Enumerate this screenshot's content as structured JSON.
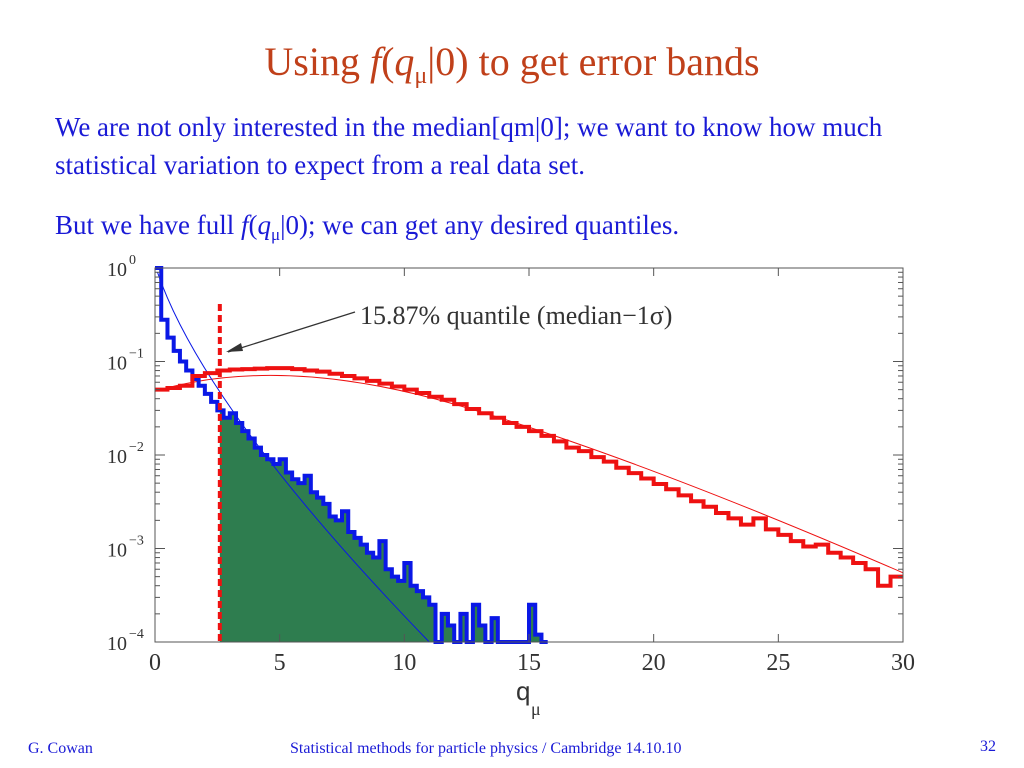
{
  "slide": {
    "title_prefix": "Using ",
    "title_f": "f",
    "title_paren": "(",
    "title_q": "q",
    "title_sub": "μ",
    "title_rest": "|0) to get error bands",
    "para1": "We are not only interested in the median[qm|0]; we want to know how much statistical variation to expect from a real data set.",
    "para2_prefix": "But we have full ",
    "para2_f": "f",
    "para2_paren": "(",
    "para2_q": "q",
    "para2_sub": "μ",
    "para2_rest": "|0); we can get any desired quantiles.",
    "footer_author": "G. Cowan",
    "footer_course": "Statistical methods for particle physics / Cambridge 14.10.10",
    "page_number": "32"
  },
  "chart_data": {
    "type": "line",
    "xlabel": "q",
    "xlabel_sub": "μ",
    "annotation": "15.87% quantile (median−1σ)",
    "xlim": [
      0,
      30
    ],
    "ylim": [
      0.0001,
      1
    ],
    "yscale": "log",
    "x_ticks": [
      0,
      5,
      10,
      15,
      20,
      25,
      30
    ],
    "y_ticks": [
      {
        "value": 1,
        "base": "10",
        "exp": "0"
      },
      {
        "value": 0.1,
        "base": "10",
        "exp": "−1"
      },
      {
        "value": 0.01,
        "base": "10",
        "exp": "−2"
      },
      {
        "value": 0.001,
        "base": "10",
        "exp": "−3"
      },
      {
        "value": 0.0001,
        "base": "10",
        "exp": "−4"
      }
    ],
    "quantile_x": 2.6,
    "colors": {
      "blue": "#0a18e6",
      "red": "#ee1111",
      "fill": "#2e7d4f",
      "arrow": "#333333"
    },
    "series": [
      {
        "color": "blue",
        "style": "histogram",
        "x": [
          0,
          0.25,
          0.5,
          0.75,
          1,
          1.25,
          1.5,
          1.75,
          2,
          2.25,
          2.5,
          2.75,
          3,
          3.25,
          3.5,
          3.75,
          4,
          4.25,
          4.5,
          4.75,
          5,
          5.25,
          5.5,
          5.75,
          6,
          6.25,
          6.5,
          6.75,
          7,
          7.25,
          7.5,
          7.75,
          8,
          8.25,
          8.5,
          8.75,
          9,
          9.25,
          9.5,
          9.75,
          10,
          10.25,
          10.5,
          10.75,
          11,
          11.25,
          11.5,
          11.75,
          12,
          12.25,
          12.5,
          12.75,
          13,
          13.25,
          13.5,
          13.75,
          14,
          14.25,
          14.5,
          14.75,
          15,
          15.25,
          15.5
        ],
        "y": [
          1,
          0.28,
          0.18,
          0.13,
          0.1,
          0.08,
          0.065,
          0.055,
          0.045,
          0.037,
          0.03,
          0.025,
          0.028,
          0.022,
          0.018,
          0.015,
          0.012,
          0.01,
          0.009,
          0.008,
          0.009,
          0.0065,
          0.0055,
          0.005,
          0.006,
          0.004,
          0.0035,
          0.003,
          0.0022,
          0.002,
          0.0025,
          0.0015,
          0.0013,
          0.0011,
          0.0009,
          0.0008,
          0.0012,
          0.0006,
          0.0005,
          0.00045,
          0.0007,
          0.0004,
          0.00035,
          0.0003,
          0.00025,
          0.0001,
          0.0002,
          0.00015,
          0.0001,
          0.0002,
          0.0001,
          0.00025,
          0.00015,
          0.0001,
          0.00018,
          0.0001,
          0.0001,
          0.0001,
          0.0001,
          0.0001,
          0.00025,
          0.00012,
          0.0001
        ]
      },
      {
        "color": "red",
        "style": "histogram",
        "x": [
          0,
          0.5,
          1,
          1.5,
          2,
          2.5,
          3,
          3.5,
          4,
          4.5,
          5,
          5.5,
          6,
          6.5,
          7,
          7.5,
          8,
          8.5,
          9,
          9.5,
          10,
          10.5,
          11,
          11.5,
          12,
          12.5,
          13,
          13.5,
          14,
          14.5,
          15,
          15.5,
          16,
          16.5,
          17,
          17.5,
          18,
          18.5,
          19,
          19.5,
          20,
          20.5,
          21,
          21.5,
          22,
          22.5,
          23,
          23.5,
          24,
          24.5,
          25,
          25.5,
          26,
          26.5,
          27,
          27.5,
          28,
          28.5,
          29,
          29.5,
          30
        ],
        "y": [
          0.05,
          0.052,
          0.055,
          0.07,
          0.075,
          0.08,
          0.082,
          0.083,
          0.084,
          0.085,
          0.085,
          0.083,
          0.08,
          0.078,
          0.074,
          0.07,
          0.066,
          0.062,
          0.058,
          0.054,
          0.05,
          0.046,
          0.042,
          0.039,
          0.035,
          0.031,
          0.028,
          0.025,
          0.022,
          0.02,
          0.018,
          0.016,
          0.014,
          0.012,
          0.011,
          0.0095,
          0.0085,
          0.0073,
          0.0064,
          0.0056,
          0.0049,
          0.0043,
          0.0037,
          0.0032,
          0.0028,
          0.0024,
          0.0021,
          0.0018,
          0.0021,
          0.0016,
          0.0014,
          0.0012,
          0.00105,
          0.0011,
          0.0009,
          0.0008,
          0.0007,
          0.0006,
          0.0004,
          0.0005,
          0.0005
        ]
      }
    ]
  }
}
